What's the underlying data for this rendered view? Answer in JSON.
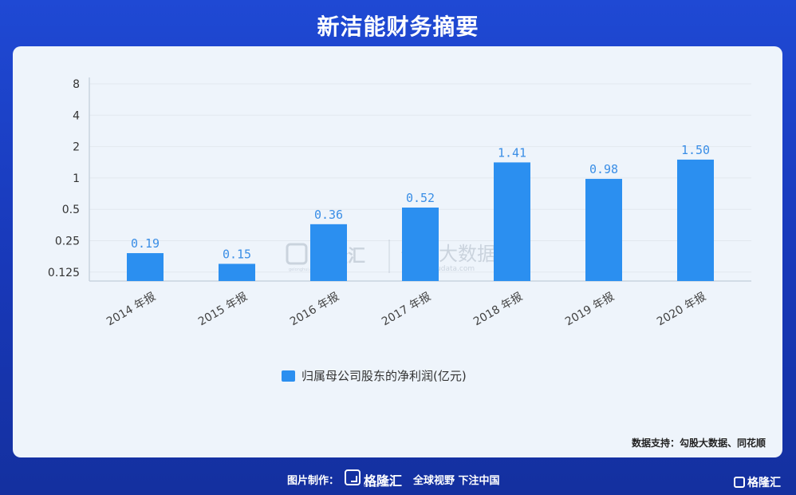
{
  "page_title": "新洁能财务摘要",
  "watermark": {
    "brand": "格隆汇",
    "brand_url": "gelonghui.com",
    "partner": "勾股大数据",
    "partner_url": "www.gogudata.com"
  },
  "source_note": "数据支持：勾股大数据、同花顺",
  "footer": {
    "made_by_label": "图片制作：",
    "brand": "格隆汇",
    "brand_url": "gelonghui.com",
    "slogan": "全球视野 下注中国"
  },
  "corner_brand": "格隆汇",
  "colors": {
    "bar": "#2b8ff0",
    "label": "#3a8ee6",
    "axis": "#c9d3df",
    "grid": "#e2e8ef"
  },
  "chart_data": {
    "type": "bar",
    "categories": [
      "2014 年报",
      "2015 年报",
      "2016 年报",
      "2017 年报",
      "2018 年报",
      "2019 年报",
      "2020 年报"
    ],
    "series": [
      {
        "name": "归属母公司股东的净利润(亿元)",
        "values": [
          0.19,
          0.15,
          0.36,
          0.52,
          1.41,
          0.98,
          1.5
        ]
      }
    ],
    "value_labels": [
      "0.19",
      "0.15",
      "0.36",
      "0.52",
      "1.41",
      "0.98",
      "1.50"
    ],
    "y_scale": "log2",
    "y_ticks": [
      0.125,
      0.25,
      0.5,
      1,
      2,
      4,
      8
    ],
    "y_tick_labels": [
      "0.125",
      "0.25",
      "0.5",
      "1",
      "2",
      "4",
      "8"
    ],
    "ylim": [
      0.1,
      8
    ],
    "grid": true,
    "legend_position": "bottom-center"
  }
}
